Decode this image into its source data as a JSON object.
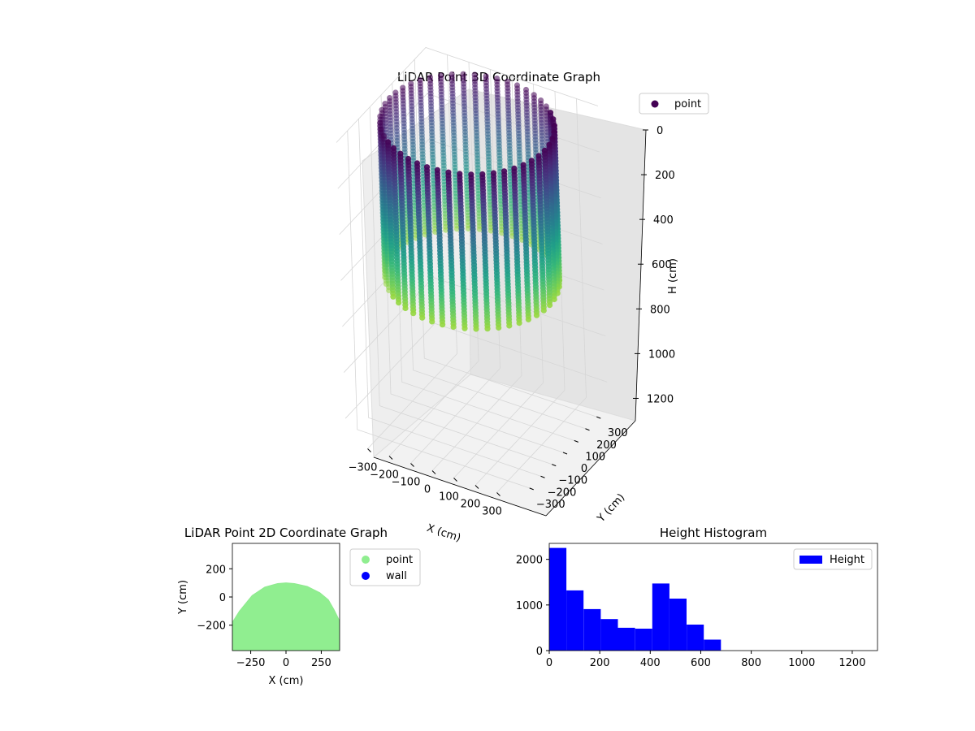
{
  "chart_data": [
    {
      "id": "lidar-3d",
      "type": "scatter",
      "projection": "3d",
      "title": "LiDAR Point 3D Coordinate Graph",
      "xlabel": "X (cm)",
      "ylabel": "Y (cm)",
      "zlabel": "H (cm)",
      "xlim": [
        -400,
        400
      ],
      "ylim": [
        -400,
        400
      ],
      "zlim": [
        1300,
        0
      ],
      "x_ticks": [
        -300,
        -200,
        -100,
        0,
        100,
        200,
        300
      ],
      "y_ticks": [
        -300,
        -200,
        -100,
        0,
        100,
        200,
        300
      ],
      "z_ticks": [
        0,
        200,
        400,
        600,
        800,
        1000,
        1200
      ],
      "x_tick_labels": [
        "−300",
        "−200",
        "−100",
        "0",
        "100",
        "200",
        "300"
      ],
      "y_tick_labels": [
        "−300",
        "−200",
        "−100",
        "0",
        "100",
        "200",
        "300"
      ],
      "z_tick_labels": [
        "0",
        "200",
        "400",
        "600",
        "800",
        "1000",
        "1200"
      ],
      "colormap": "viridis",
      "grid": true,
      "legend": {
        "placement": "top-right",
        "entries": [
          {
            "label": "point",
            "color": "#440154"
          }
        ]
      },
      "shape": {
        "radius_cm": 360,
        "h_top_cm": 0,
        "h_bottom_cm": 680,
        "strands": 48
      }
    },
    {
      "id": "lidar-2d",
      "type": "scatter",
      "title": "LiDAR Point 2D Coordinate Graph",
      "xlabel": "X (cm)",
      "ylabel": "Y (cm)",
      "xlim": [
        -380,
        380
      ],
      "ylim": [
        -380,
        380
      ],
      "x_ticks": [
        -250,
        0,
        250
      ],
      "y_ticks": [
        -200,
        0,
        200
      ],
      "x_tick_labels": [
        "−250",
        "0",
        "250"
      ],
      "y_tick_labels": [
        "−200",
        "0",
        "200"
      ],
      "grid": false,
      "legend": {
        "placement": "outside-right",
        "entries": [
          {
            "label": "point",
            "color": "#90ee90"
          },
          {
            "label": "wall",
            "color": "#0000ff"
          }
        ]
      },
      "region_outline": [
        [
          -380,
          -380
        ],
        [
          -380,
          -180
        ],
        [
          -330,
          -100
        ],
        [
          -240,
          10
        ],
        [
          -150,
          70
        ],
        [
          -60,
          95
        ],
        [
          0,
          100
        ],
        [
          60,
          95
        ],
        [
          150,
          75
        ],
        [
          240,
          30
        ],
        [
          300,
          -20
        ],
        [
          340,
          -90
        ],
        [
          380,
          -170
        ],
        [
          380,
          -380
        ]
      ]
    },
    {
      "id": "height-hist",
      "type": "bar",
      "title": "Height Histogram",
      "xlabel": "",
      "ylabel": "",
      "xlim": [
        0,
        1300
      ],
      "ylim": [
        0,
        2350
      ],
      "x_ticks": [
        0,
        200,
        400,
        600,
        800,
        1000,
        1200
      ],
      "y_ticks": [
        0,
        1000,
        2000
      ],
      "x_tick_labels": [
        "0",
        "200",
        "400",
        "600",
        "800",
        "1000",
        "1200"
      ],
      "y_tick_labels": [
        "0",
        "1000",
        "2000"
      ],
      "bin_edges": [
        0,
        68,
        136,
        204,
        272,
        340,
        408,
        476,
        544,
        612,
        680
      ],
      "values": [
        2250,
        1320,
        910,
        690,
        500,
        480,
        1470,
        1140,
        570,
        240
      ],
      "color": "#0000ff",
      "grid": false,
      "legend": {
        "placement": "top-right",
        "entries": [
          {
            "label": "Height",
            "color": "#0000ff"
          }
        ]
      }
    }
  ]
}
